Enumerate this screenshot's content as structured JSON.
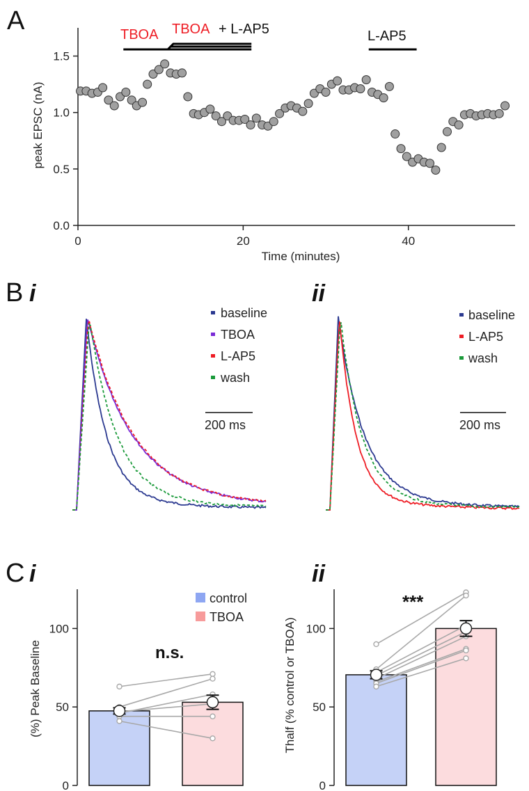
{
  "figure": {
    "panel_a_letter": "A",
    "panel_b_letter": "B",
    "panel_b_i": "i",
    "panel_b_ii": "ii",
    "panel_c_letter": "C",
    "panel_c_i": "i",
    "panel_c_ii": "ii"
  },
  "colors": {
    "baseline": "#2b3990",
    "tboa": "#7a2bd6",
    "lap5": "#ee1c24",
    "wash": "#1a9a3a",
    "control_bar": "#c5d2f7",
    "tboa_bar": "#fcdcde",
    "legend_control": "#8ea6f2",
    "legend_tboa": "#f79b9b",
    "dot": "#a0a0a0",
    "red_label": "#ee1c24"
  },
  "chart_data": [
    {
      "id": "A",
      "type": "scatter",
      "xlabel": "Time (minutes)",
      "ylabel": "peak EPSC (nA)",
      "xlim": [
        0,
        53
      ],
      "ylim": [
        0,
        1.75
      ],
      "xticks": [
        0,
        20,
        40
      ],
      "yticks": [
        0.0,
        0.5,
        1.0,
        1.5
      ],
      "ytick_labels": [
        "0.0",
        "0.5",
        "1.0",
        "1.5"
      ],
      "x": [
        0.3,
        1.0,
        1.7,
        2.4,
        3.0,
        3.7,
        4.4,
        5.1,
        5.8,
        6.5,
        7.1,
        7.8,
        8.4,
        9.1,
        9.8,
        10.5,
        11.2,
        11.9,
        12.6,
        13.3,
        14.0,
        14.6,
        15.3,
        16.0,
        16.7,
        17.4,
        18.1,
        18.8,
        19.5,
        20.2,
        20.9,
        21.6,
        22.3,
        23.0,
        23.7,
        24.4,
        25.1,
        25.8,
        26.5,
        27.2,
        27.9,
        28.6,
        29.3,
        30.0,
        30.7,
        31.4,
        32.1,
        32.8,
        33.5,
        34.2,
        34.9,
        35.6,
        36.3,
        37.0,
        37.7,
        38.4,
        39.1,
        39.8,
        40.5,
        41.2,
        41.9,
        42.6,
        43.3,
        44.0,
        44.7,
        45.4,
        46.1,
        46.8,
        47.5,
        48.2,
        48.9,
        49.6,
        50.3,
        51.0,
        51.7
      ],
      "y": [
        1.19,
        1.19,
        1.17,
        1.18,
        1.22,
        1.11,
        1.06,
        1.14,
        1.18,
        1.11,
        1.06,
        1.09,
        1.25,
        1.34,
        1.38,
        1.43,
        1.35,
        1.34,
        1.35,
        1.14,
        0.99,
        0.98,
        1.0,
        1.03,
        0.97,
        0.92,
        0.97,
        0.93,
        0.93,
        0.94,
        0.89,
        0.95,
        0.89,
        0.88,
        0.92,
        0.99,
        1.04,
        1.06,
        1.04,
        1.01,
        1.08,
        1.17,
        1.21,
        1.18,
        1.25,
        1.28,
        1.2,
        1.2,
        1.22,
        1.21,
        1.29,
        1.18,
        1.16,
        1.13,
        1.23,
        0.81,
        0.68,
        0.61,
        0.56,
        0.59,
        0.56,
        0.55,
        0.49,
        0.69,
        0.83,
        0.92,
        0.89,
        0.98,
        0.99,
        0.97,
        0.98,
        0.99,
        0.98,
        0.99,
        1.06
      ],
      "annotations": [
        {
          "text": "TBOA",
          "color": "red",
          "x_start": 5.5,
          "x_end": 21
        },
        {
          "text": "TBOA",
          "color": "red",
          "text2": "+ L-AP5",
          "x_start": 7.5,
          "x_end": 21
        },
        {
          "text": "L-AP5",
          "color": "black",
          "x_start": 35.2,
          "x_end": 41
        }
      ]
    },
    {
      "id": "B-i",
      "type": "line",
      "series": [
        {
          "name": "baseline",
          "style": "solid",
          "decay_tau_ms": 85
        },
        {
          "name": "TBOA",
          "style": "solid",
          "decay_tau_ms": 190
        },
        {
          "name": "L-AP5",
          "style": "dashed",
          "decay_tau_ms": 190
        },
        {
          "name": "wash",
          "style": "dashed",
          "decay_tau_ms": 115
        }
      ],
      "scale_bar": "200 ms",
      "scale_bar_ms": 200
    },
    {
      "id": "B-ii",
      "type": "line",
      "series": [
        {
          "name": "baseline",
          "style": "solid",
          "decay_tau_ms": 110
        },
        {
          "name": "L-AP5",
          "style": "solid",
          "decay_tau_ms": 70
        },
        {
          "name": "wash",
          "style": "dashed",
          "decay_tau_ms": 90
        }
      ],
      "scale_bar": "200 ms",
      "scale_bar_ms": 200
    },
    {
      "id": "C-i",
      "type": "bar",
      "ylabel": "(%) Peak Baseline",
      "ylim": [
        0,
        125
      ],
      "yticks": [
        0,
        50,
        100
      ],
      "categories": [
        "control",
        "TBOA"
      ],
      "values": [
        47.5,
        53
      ],
      "sem": [
        2,
        4.5
      ],
      "annotation": "n.s.",
      "paired": {
        "control": [
          63,
          50,
          46,
          47,
          44,
          41
        ],
        "tboa": [
          71,
          68,
          58,
          52,
          44,
          30
        ]
      }
    },
    {
      "id": "C-ii",
      "type": "bar",
      "ylabel": "Thalf (% control or TBOA)",
      "ylim": [
        0,
        125
      ],
      "yticks": [
        0,
        50,
        100
      ],
      "categories": [
        "control",
        "TBOA"
      ],
      "values": [
        70.5,
        100
      ],
      "sem": [
        2.5,
        5
      ],
      "annotation": "***",
      "paired": {
        "control": [
          90,
          74,
          72,
          70,
          68,
          66,
          65,
          63
        ],
        "tboa": [
          123,
          121,
          102,
          98,
          95,
          87,
          86,
          81
        ]
      }
    }
  ]
}
